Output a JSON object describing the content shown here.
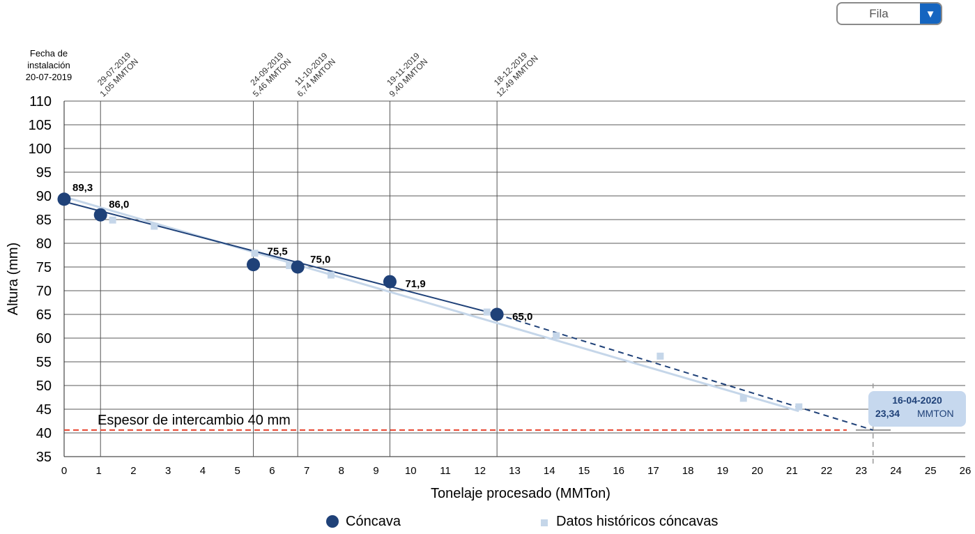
{
  "filter": {
    "label": "Fila"
  },
  "install": [
    "Fecha de",
    "instalación",
    "20-07-2019"
  ],
  "chart_data": {
    "type": "line",
    "xlabel": "Tonelaje procesado (MMTon)",
    "ylabel": "Altura (mm)",
    "xlim": [
      0,
      26
    ],
    "ylim": [
      35,
      110
    ],
    "yticks": [
      35,
      40,
      45,
      50,
      55,
      60,
      65,
      70,
      75,
      80,
      85,
      90,
      95,
      100,
      105,
      110
    ],
    "x_tick_labels": [
      {
        "v": 0,
        "t": "0"
      },
      {
        "v": 1,
        "t": "1"
      },
      {
        "v": 2,
        "t": "2"
      },
      {
        "v": 3,
        "t": "3"
      },
      {
        "v": 4,
        "t": "4"
      },
      {
        "v": 5,
        "t": "5"
      },
      {
        "v": 6,
        "t": "6"
      },
      {
        "v": 7,
        "t": "7"
      },
      {
        "v": 8,
        "t": "8"
      },
      {
        "v": 9,
        "t": "9"
      },
      {
        "v": 10,
        "t": "10"
      },
      {
        "v": 11,
        "t": "11"
      },
      {
        "v": 12,
        "t": "12"
      },
      {
        "v": 13,
        "t": "13"
      },
      {
        "v": 14,
        "t": "14"
      },
      {
        "v": 15,
        "t": "15"
      },
      {
        "v": 16,
        "t": "16"
      },
      {
        "v": 17,
        "t": "17"
      },
      {
        "v": 18,
        "t": "18"
      },
      {
        "v": 19,
        "t": "19"
      },
      {
        "v": 20,
        "t": "20"
      },
      {
        "v": 21,
        "t": "21"
      },
      {
        "v": 22,
        "t": "22"
      },
      {
        "v": 23,
        "t": "23"
      },
      {
        "v": 24,
        "t": "24"
      },
      {
        "v": 25,
        "t": "25"
      },
      {
        "v": 26,
        "t": "26"
      }
    ],
    "grid": true,
    "legend_position": "bottom",
    "measurement_lines": [
      {
        "x": 1.05,
        "date": "29-07-2019",
        "label": "1,05   MMTON"
      },
      {
        "x": 5.46,
        "date": "24-09-2019",
        "label": "5,46   MMTON"
      },
      {
        "x": 6.74,
        "date": "11-10-2019",
        "label": "6,74   MMTON"
      },
      {
        "x": 9.4,
        "date": "19-11-2019",
        "label": "9,40   MMTON"
      },
      {
        "x": 12.49,
        "date": "18-12-2019",
        "label": "12,49   MMTON"
      }
    ],
    "series": [
      {
        "name": "Cóncava",
        "color": "#1f4178",
        "marker": "circle",
        "x": [
          0,
          1.05,
          5.46,
          6.74,
          9.4,
          12.49
        ],
        "y": [
          89.3,
          86.0,
          75.5,
          75.0,
          71.9,
          65.0
        ],
        "labels": [
          "89,3",
          "86,0",
          "75,5",
          "75,0",
          "71,9",
          "65,0"
        ]
      },
      {
        "name": "Datos históricos cóncavas",
        "color": "#c5d6e9",
        "marker": "square",
        "x": [
          1.4,
          2.6,
          5.5,
          6.5,
          7.7,
          12.2,
          14.2,
          17.2,
          19.6,
          21.2
        ],
        "y": [
          84.9,
          83.6,
          77.9,
          75.3,
          73.3,
          65.5,
          60.5,
          56.2,
          47.3,
          45.5
        ]
      }
    ],
    "trend_cóncava": {
      "x": [
        0,
        12.49
      ],
      "y": [
        88.8,
        65.0
      ]
    },
    "projection": {
      "x": [
        12.49,
        23.34
      ],
      "y": [
        65.0,
        40.6
      ]
    },
    "trend_historicos": {
      "x": [
        0,
        21.2
      ],
      "y": [
        89.8,
        44.6
      ]
    },
    "threshold": {
      "y": 40.6,
      "label": "Espesor de intercambio 40 mm",
      "color": "#e8432e"
    },
    "projection_point": {
      "x": 23.34,
      "y": 40.6,
      "date": "16-04-2020",
      "value": "23,34",
      "unit": "MMTON"
    }
  }
}
